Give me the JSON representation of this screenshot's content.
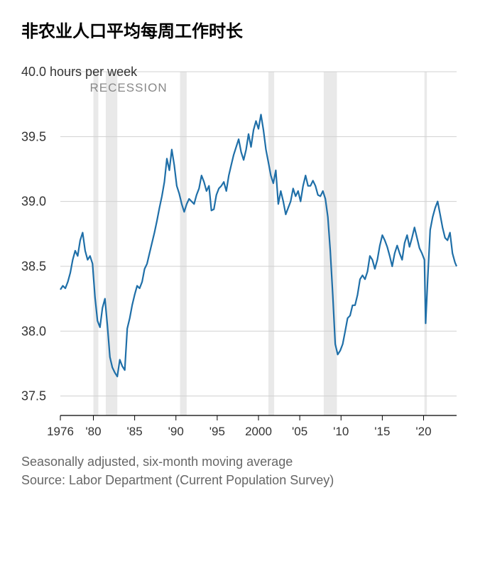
{
  "title": "非农业人口平均每周工作时长",
  "chart": {
    "type": "line",
    "line_color": "#1f6fa8",
    "background_color": "#ffffff",
    "grid_color": "#d0d0d0",
    "recession_band_color": "#e9e9e9",
    "line_width": 2.2,
    "y_axis": {
      "unit_label": "40.0 hours per week",
      "min": 37.35,
      "max": 40.0,
      "ticks": [
        37.5,
        38.0,
        38.5,
        39.0,
        39.5,
        40.0
      ]
    },
    "x_axis": {
      "min": 1976,
      "max": 2024,
      "ticks": [
        {
          "v": 1976,
          "label": "1976"
        },
        {
          "v": 1980,
          "label": "'80"
        },
        {
          "v": 1985,
          "label": "'85"
        },
        {
          "v": 1990,
          "label": "'90"
        },
        {
          "v": 1995,
          "label": "'95"
        },
        {
          "v": 2000,
          "label": "2000"
        },
        {
          "v": 2005,
          "label": "'05"
        },
        {
          "v": 2010,
          "label": "'10"
        },
        {
          "v": 2015,
          "label": "'15"
        },
        {
          "v": 2020,
          "label": "'20"
        }
      ]
    },
    "recession_label": "RECESSION",
    "recession_bands": [
      {
        "start": 1980.0,
        "end": 1980.6
      },
      {
        "start": 1981.5,
        "end": 1982.9
      },
      {
        "start": 1990.5,
        "end": 1991.3
      },
      {
        "start": 2001.2,
        "end": 2001.9
      },
      {
        "start": 2007.9,
        "end": 2009.5
      },
      {
        "start": 2020.1,
        "end": 2020.4
      }
    ],
    "series": [
      {
        "x": 1976.0,
        "y": 38.32
      },
      {
        "x": 1976.3,
        "y": 38.35
      },
      {
        "x": 1976.6,
        "y": 38.33
      },
      {
        "x": 1976.9,
        "y": 38.38
      },
      {
        "x": 1977.2,
        "y": 38.45
      },
      {
        "x": 1977.5,
        "y": 38.55
      },
      {
        "x": 1977.8,
        "y": 38.62
      },
      {
        "x": 1978.1,
        "y": 38.58
      },
      {
        "x": 1978.4,
        "y": 38.7
      },
      {
        "x": 1978.7,
        "y": 38.76
      },
      {
        "x": 1979.0,
        "y": 38.62
      },
      {
        "x": 1979.3,
        "y": 38.55
      },
      {
        "x": 1979.6,
        "y": 38.58
      },
      {
        "x": 1979.9,
        "y": 38.52
      },
      {
        "x": 1980.2,
        "y": 38.26
      },
      {
        "x": 1980.5,
        "y": 38.08
      },
      {
        "x": 1980.8,
        "y": 38.03
      },
      {
        "x": 1981.1,
        "y": 38.18
      },
      {
        "x": 1981.4,
        "y": 38.25
      },
      {
        "x": 1981.7,
        "y": 38.04
      },
      {
        "x": 1982.0,
        "y": 37.8
      },
      {
        "x": 1982.3,
        "y": 37.72
      },
      {
        "x": 1982.6,
        "y": 37.68
      },
      {
        "x": 1982.9,
        "y": 37.65
      },
      {
        "x": 1983.2,
        "y": 37.78
      },
      {
        "x": 1983.5,
        "y": 37.73
      },
      {
        "x": 1983.8,
        "y": 37.7
      },
      {
        "x": 1984.1,
        "y": 38.02
      },
      {
        "x": 1984.4,
        "y": 38.1
      },
      {
        "x": 1984.7,
        "y": 38.2
      },
      {
        "x": 1985.0,
        "y": 38.28
      },
      {
        "x": 1985.3,
        "y": 38.35
      },
      {
        "x": 1985.6,
        "y": 38.33
      },
      {
        "x": 1985.9,
        "y": 38.38
      },
      {
        "x": 1986.2,
        "y": 38.48
      },
      {
        "x": 1986.5,
        "y": 38.52
      },
      {
        "x": 1986.8,
        "y": 38.6
      },
      {
        "x": 1987.1,
        "y": 38.68
      },
      {
        "x": 1987.4,
        "y": 38.76
      },
      {
        "x": 1987.7,
        "y": 38.85
      },
      {
        "x": 1988.0,
        "y": 38.95
      },
      {
        "x": 1988.3,
        "y": 39.04
      },
      {
        "x": 1988.6,
        "y": 39.15
      },
      {
        "x": 1988.9,
        "y": 39.33
      },
      {
        "x": 1989.2,
        "y": 39.24
      },
      {
        "x": 1989.5,
        "y": 39.4
      },
      {
        "x": 1989.8,
        "y": 39.28
      },
      {
        "x": 1990.1,
        "y": 39.12
      },
      {
        "x": 1990.4,
        "y": 39.06
      },
      {
        "x": 1990.7,
        "y": 38.98
      },
      {
        "x": 1991.0,
        "y": 38.92
      },
      {
        "x": 1991.3,
        "y": 38.98
      },
      {
        "x": 1991.6,
        "y": 39.02
      },
      {
        "x": 1991.9,
        "y": 39.0
      },
      {
        "x": 1992.2,
        "y": 38.98
      },
      {
        "x": 1992.5,
        "y": 39.05
      },
      {
        "x": 1992.8,
        "y": 39.1
      },
      {
        "x": 1993.1,
        "y": 39.2
      },
      {
        "x": 1993.4,
        "y": 39.15
      },
      {
        "x": 1993.7,
        "y": 39.08
      },
      {
        "x": 1994.0,
        "y": 39.12
      },
      {
        "x": 1994.3,
        "y": 38.93
      },
      {
        "x": 1994.6,
        "y": 38.94
      },
      {
        "x": 1994.9,
        "y": 39.05
      },
      {
        "x": 1995.2,
        "y": 39.1
      },
      {
        "x": 1995.5,
        "y": 39.12
      },
      {
        "x": 1995.8,
        "y": 39.15
      },
      {
        "x": 1996.1,
        "y": 39.08
      },
      {
        "x": 1996.4,
        "y": 39.2
      },
      {
        "x": 1996.7,
        "y": 39.28
      },
      {
        "x": 1997.0,
        "y": 39.36
      },
      {
        "x": 1997.3,
        "y": 39.42
      },
      {
        "x": 1997.6,
        "y": 39.48
      },
      {
        "x": 1997.9,
        "y": 39.38
      },
      {
        "x": 1998.2,
        "y": 39.32
      },
      {
        "x": 1998.5,
        "y": 39.4
      },
      {
        "x": 1998.8,
        "y": 39.52
      },
      {
        "x": 1999.1,
        "y": 39.42
      },
      {
        "x": 1999.4,
        "y": 39.55
      },
      {
        "x": 1999.7,
        "y": 39.62
      },
      {
        "x": 2000.0,
        "y": 39.56
      },
      {
        "x": 2000.3,
        "y": 39.67
      },
      {
        "x": 2000.6,
        "y": 39.55
      },
      {
        "x": 2000.9,
        "y": 39.4
      },
      {
        "x": 2001.2,
        "y": 39.3
      },
      {
        "x": 2001.5,
        "y": 39.2
      },
      {
        "x": 2001.8,
        "y": 39.14
      },
      {
        "x": 2002.1,
        "y": 39.24
      },
      {
        "x": 2002.4,
        "y": 38.98
      },
      {
        "x": 2002.7,
        "y": 39.08
      },
      {
        "x": 2003.0,
        "y": 39.0
      },
      {
        "x": 2003.3,
        "y": 38.9
      },
      {
        "x": 2003.6,
        "y": 38.95
      },
      {
        "x": 2003.9,
        "y": 39.0
      },
      {
        "x": 2004.2,
        "y": 39.1
      },
      {
        "x": 2004.5,
        "y": 39.04
      },
      {
        "x": 2004.8,
        "y": 39.08
      },
      {
        "x": 2005.1,
        "y": 39.0
      },
      {
        "x": 2005.4,
        "y": 39.12
      },
      {
        "x": 2005.7,
        "y": 39.2
      },
      {
        "x": 2006.0,
        "y": 39.12
      },
      {
        "x": 2006.3,
        "y": 39.12
      },
      {
        "x": 2006.6,
        "y": 39.16
      },
      {
        "x": 2006.9,
        "y": 39.12
      },
      {
        "x": 2007.2,
        "y": 39.05
      },
      {
        "x": 2007.5,
        "y": 39.04
      },
      {
        "x": 2007.8,
        "y": 39.08
      },
      {
        "x": 2008.1,
        "y": 39.02
      },
      {
        "x": 2008.4,
        "y": 38.88
      },
      {
        "x": 2008.7,
        "y": 38.62
      },
      {
        "x": 2009.0,
        "y": 38.28
      },
      {
        "x": 2009.3,
        "y": 37.9
      },
      {
        "x": 2009.6,
        "y": 37.82
      },
      {
        "x": 2009.9,
        "y": 37.85
      },
      {
        "x": 2010.2,
        "y": 37.9
      },
      {
        "x": 2010.5,
        "y": 38.0
      },
      {
        "x": 2010.8,
        "y": 38.1
      },
      {
        "x": 2011.1,
        "y": 38.12
      },
      {
        "x": 2011.4,
        "y": 38.2
      },
      {
        "x": 2011.7,
        "y": 38.2
      },
      {
        "x": 2012.0,
        "y": 38.28
      },
      {
        "x": 2012.3,
        "y": 38.4
      },
      {
        "x": 2012.6,
        "y": 38.43
      },
      {
        "x": 2012.9,
        "y": 38.4
      },
      {
        "x": 2013.2,
        "y": 38.46
      },
      {
        "x": 2013.5,
        "y": 38.58
      },
      {
        "x": 2013.8,
        "y": 38.55
      },
      {
        "x": 2014.1,
        "y": 38.48
      },
      {
        "x": 2014.4,
        "y": 38.55
      },
      {
        "x": 2014.7,
        "y": 38.66
      },
      {
        "x": 2015.0,
        "y": 38.74
      },
      {
        "x": 2015.3,
        "y": 38.7
      },
      {
        "x": 2015.6,
        "y": 38.65
      },
      {
        "x": 2015.9,
        "y": 38.58
      },
      {
        "x": 2016.2,
        "y": 38.5
      },
      {
        "x": 2016.5,
        "y": 38.6
      },
      {
        "x": 2016.8,
        "y": 38.66
      },
      {
        "x": 2017.1,
        "y": 38.6
      },
      {
        "x": 2017.4,
        "y": 38.55
      },
      {
        "x": 2017.7,
        "y": 38.68
      },
      {
        "x": 2018.0,
        "y": 38.74
      },
      {
        "x": 2018.3,
        "y": 38.65
      },
      {
        "x": 2018.6,
        "y": 38.72
      },
      {
        "x": 2018.9,
        "y": 38.8
      },
      {
        "x": 2019.2,
        "y": 38.72
      },
      {
        "x": 2019.5,
        "y": 38.64
      },
      {
        "x": 2019.8,
        "y": 38.6
      },
      {
        "x": 2020.1,
        "y": 38.55
      },
      {
        "x": 2020.25,
        "y": 38.06
      },
      {
        "x": 2020.5,
        "y": 38.4
      },
      {
        "x": 2020.8,
        "y": 38.78
      },
      {
        "x": 2021.1,
        "y": 38.88
      },
      {
        "x": 2021.4,
        "y": 38.95
      },
      {
        "x": 2021.7,
        "y": 39.0
      },
      {
        "x": 2022.0,
        "y": 38.9
      },
      {
        "x": 2022.3,
        "y": 38.8
      },
      {
        "x": 2022.6,
        "y": 38.72
      },
      {
        "x": 2022.9,
        "y": 38.7
      },
      {
        "x": 2023.2,
        "y": 38.76
      },
      {
        "x": 2023.5,
        "y": 38.6
      },
      {
        "x": 2023.8,
        "y": 38.53
      },
      {
        "x": 2024.0,
        "y": 38.5
      }
    ]
  },
  "footnote_line1": "Seasonally adjusted, six-month moving average",
  "footnote_line2": "Source: Labor Department (Current Population Survey)"
}
